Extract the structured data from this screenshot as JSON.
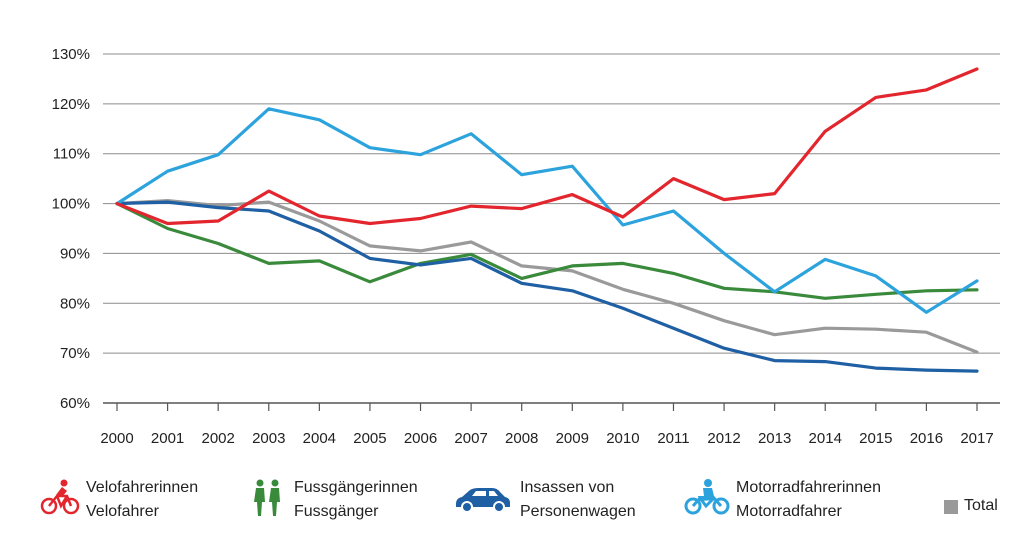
{
  "chart_data": {
    "type": "line",
    "x": [
      "2000",
      "2001",
      "2002",
      "2003",
      "2004",
      "2005",
      "2006",
      "2007",
      "2008",
      "2009",
      "2010",
      "2011",
      "2012",
      "2013",
      "2014",
      "2015",
      "2016",
      "2017"
    ],
    "y_ticks": [
      "60%",
      "70%",
      "80%",
      "90%",
      "100%",
      "110%",
      "120%",
      "130%"
    ],
    "ylim": [
      60,
      130
    ],
    "grid": true,
    "legend_placement": "bottom",
    "series": [
      {
        "name": "Velofahrerinnen Velofahrer",
        "color": "#e3262e",
        "values": [
          100,
          96,
          96.5,
          102.5,
          97.5,
          96,
          97,
          99.5,
          99,
          101.8,
          97.3,
          105,
          100.8,
          102,
          114.5,
          121.3,
          122.8,
          127
        ]
      },
      {
        "name": "Fussgängerinnen Fussgänger",
        "color": "#3a8a3c",
        "values": [
          100,
          95,
          92,
          88,
          88.5,
          84.3,
          88,
          89.8,
          85,
          87.5,
          88,
          86,
          83,
          82.3,
          81,
          81.8,
          82.5,
          82.7
        ]
      },
      {
        "name": "Insassen von Personenwagen",
        "color": "#1f5fa3",
        "values": [
          100,
          100.3,
          99.2,
          98.5,
          94.5,
          89,
          87.7,
          89,
          84,
          82.5,
          79,
          75,
          71,
          68.5,
          68.3,
          67,
          66.6,
          66.4
        ]
      },
      {
        "name": "Motorradfahrerinnen Motorradfahrer",
        "color": "#2ca3dd",
        "values": [
          100,
          106.5,
          109.8,
          119,
          116.8,
          111.2,
          109.8,
          114,
          105.8,
          107.5,
          95.7,
          98.5,
          90,
          82.3,
          88.8,
          85.5,
          78.2,
          84.5
        ]
      },
      {
        "name": "Total",
        "color": "#9a9a9a",
        "values": [
          100,
          100.6,
          99.6,
          100.3,
          96.5,
          91.5,
          90.5,
          92.3,
          87.5,
          86.5,
          82.8,
          80,
          76.5,
          73.7,
          75,
          74.8,
          74.2,
          70.2
        ]
      }
    ]
  },
  "legend": {
    "items": [
      {
        "line1": "Velofahrerinnen",
        "line2": "Velofahrer",
        "icon": "cyclist-icon",
        "color": "#e3262e"
      },
      {
        "line1": "Fussgängerinnen",
        "line2": "Fussgänger",
        "icon": "pedestrians-icon",
        "color": "#3a8a3c"
      },
      {
        "line1": "Insassen von",
        "line2": "Personenwagen",
        "icon": "car-icon",
        "color": "#1f5fa3"
      },
      {
        "line1": "Motorradfahrerinnen",
        "line2": "Motorradfahrer",
        "icon": "motorcycle-icon",
        "color": "#2ca3dd"
      },
      {
        "line1": "Total",
        "line2": "",
        "icon": "total-swatch",
        "color": "#9a9a9a"
      }
    ]
  }
}
